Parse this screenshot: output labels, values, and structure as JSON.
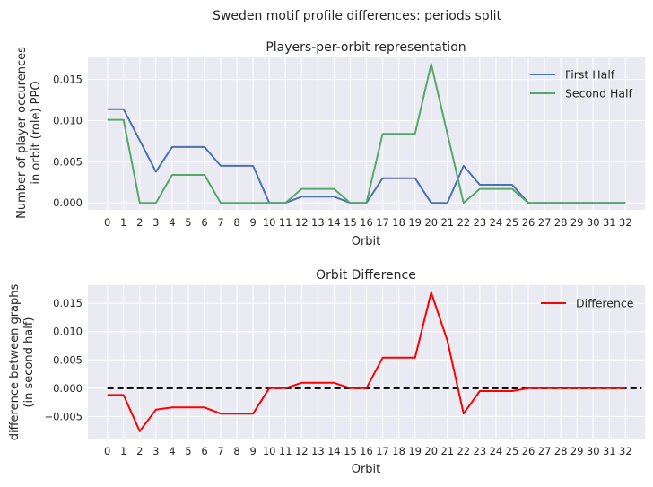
{
  "figure": {
    "suptitle": "Sweden motif profile differences: periods split"
  },
  "colors": {
    "axes_bg": "#eaeaf2",
    "grid": "#ffffff",
    "first_half": "#4c72b0",
    "second_half": "#55a868",
    "difference": "#ff0000",
    "zero_line": "#000000"
  },
  "chart_data": [
    {
      "type": "line",
      "title": "Players-per-orbit representation",
      "xlabel": "Orbit",
      "ylabel": [
        "Number of player occurences",
        "in orbit (role) PPO"
      ],
      "x": [
        0,
        1,
        2,
        3,
        4,
        5,
        6,
        7,
        8,
        9,
        10,
        11,
        12,
        13,
        14,
        15,
        16,
        17,
        18,
        19,
        20,
        21,
        22,
        23,
        24,
        25,
        26,
        27,
        28,
        29,
        30,
        31,
        32
      ],
      "xlim": [
        -1.2,
        33.2
      ],
      "ylim": [
        -0.00085,
        0.0178
      ],
      "yticks": [
        0.0,
        0.005,
        0.01,
        0.015
      ],
      "ytick_labels": [
        "0.000",
        "0.005",
        "0.010",
        "0.015"
      ],
      "legend_position": "top-right",
      "series": [
        {
          "name": "First Half",
          "color": "#4c72b0",
          "values": [
            0.0114,
            0.0114,
            0.0076,
            0.0038,
            0.0068,
            0.0068,
            0.0068,
            0.0045,
            0.0045,
            0.0045,
            0.0,
            0.0,
            0.00075,
            0.00075,
            0.00075,
            0.0,
            0.0,
            0.003,
            0.003,
            0.003,
            0.0,
            0.0,
            0.0045,
            0.0022,
            0.0022,
            0.0022,
            0.0,
            0.0,
            0.0,
            0.0,
            0.0,
            0.0,
            0.0
          ]
        },
        {
          "name": "Second Half",
          "color": "#55a868",
          "values": [
            0.0101,
            0.0101,
            0.0,
            0.0,
            0.0034,
            0.0034,
            0.0034,
            0.0,
            0.0,
            0.0,
            0.0,
            0.0,
            0.0017,
            0.0017,
            0.0017,
            0.0,
            0.0,
            0.0084,
            0.0084,
            0.0084,
            0.0169,
            0.0084,
            0.0,
            0.0017,
            0.0017,
            0.0017,
            0.0,
            0.0,
            0.0,
            0.0,
            0.0,
            0.0,
            0.0
          ]
        }
      ]
    },
    {
      "type": "line",
      "title": "Orbit Difference",
      "xlabel": "Orbit",
      "ylabel": [
        "difference between graphs",
        "(in second half)"
      ],
      "x": [
        0,
        1,
        2,
        3,
        4,
        5,
        6,
        7,
        8,
        9,
        10,
        11,
        12,
        13,
        14,
        15,
        16,
        17,
        18,
        19,
        20,
        21,
        22,
        23,
        24,
        25,
        26,
        27,
        28,
        29,
        30,
        31,
        32
      ],
      "xlim": [
        -1.2,
        33.2
      ],
      "ylim": [
        -0.0089,
        0.0182
      ],
      "yticks": [
        -0.005,
        0.0,
        0.005,
        0.01,
        0.015
      ],
      "ytick_labels": [
        "−0.005",
        "0.000",
        "0.005",
        "0.010",
        "0.015"
      ],
      "legend_position": "top-right",
      "zero_line": {
        "from": 0,
        "to": 33,
        "style": "dashed"
      },
      "series": [
        {
          "name": "Difference",
          "color": "#ff0000",
          "values": [
            -0.0012,
            -0.0012,
            -0.0076,
            -0.0038,
            -0.0034,
            -0.0034,
            -0.0034,
            -0.0045,
            -0.0045,
            -0.0045,
            0.0,
            0.0,
            0.00095,
            0.00095,
            0.00095,
            0.0,
            0.0,
            0.0054,
            0.0054,
            0.0054,
            0.0169,
            0.0084,
            -0.0045,
            -0.0005,
            -0.0005,
            -0.0005,
            0.0,
            0.0,
            0.0,
            0.0,
            0.0,
            0.0,
            0.0
          ]
        }
      ]
    }
  ]
}
